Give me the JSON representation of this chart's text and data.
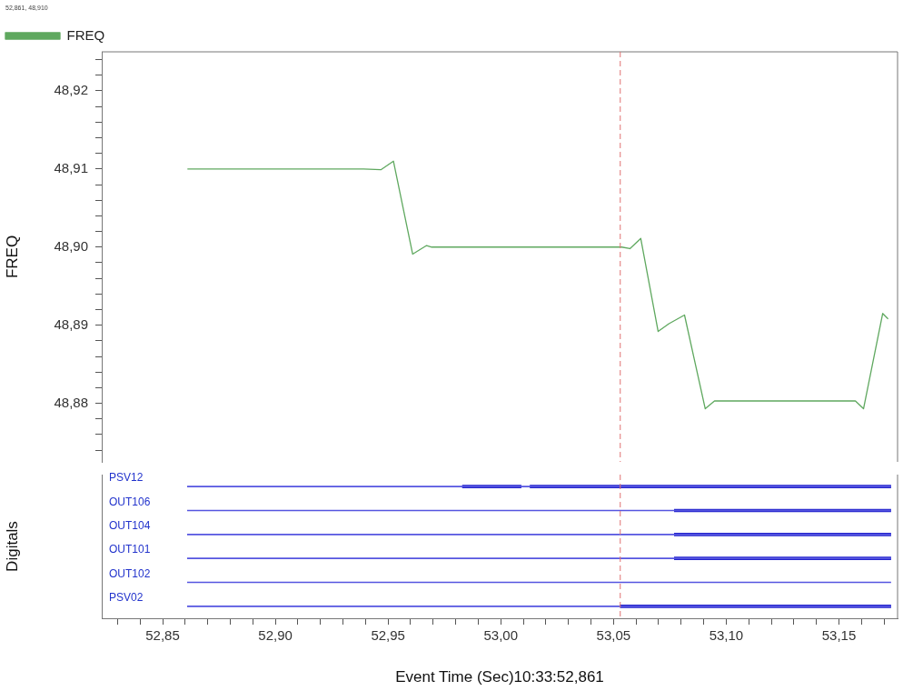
{
  "chart_data": [
    {
      "type": "line",
      "ylabel": "FREQ",
      "legend": "top",
      "tick_labels": "y",
      "annotations": [
        "52,861, 48,910"
      ],
      "xlim": [
        52.823,
        53.176
      ],
      "ylim": [
        48.8725,
        48.925
      ],
      "yticks": [
        {
          "value": 48.874,
          "label": null
        },
        {
          "value": 48.876,
          "label": null
        },
        {
          "value": 48.878,
          "label": null
        },
        {
          "value": 48.88,
          "label": "48,88"
        },
        {
          "value": 48.882,
          "label": null
        },
        {
          "value": 48.884,
          "label": null
        },
        {
          "value": 48.886,
          "label": null
        },
        {
          "value": 48.888,
          "label": null
        },
        {
          "value": 48.89,
          "label": "48,89"
        },
        {
          "value": 48.892,
          "label": null
        },
        {
          "value": 48.894,
          "label": null
        },
        {
          "value": 48.896,
          "label": null
        },
        {
          "value": 48.898,
          "label": null
        },
        {
          "value": 48.9,
          "label": "48,90"
        },
        {
          "value": 48.902,
          "label": null
        },
        {
          "value": 48.904,
          "label": null
        },
        {
          "value": 48.906,
          "label": null
        },
        {
          "value": 48.908,
          "label": null
        },
        {
          "value": 48.91,
          "label": "48,91"
        },
        {
          "value": 48.912,
          "label": null
        },
        {
          "value": 48.914,
          "label": null
        },
        {
          "value": 48.916,
          "label": null
        },
        {
          "value": 48.918,
          "label": null
        },
        {
          "value": 48.92,
          "label": "48,92"
        },
        {
          "value": 48.922,
          "label": null
        },
        {
          "value": 48.924,
          "label": null
        }
      ],
      "ref_lines": [
        {
          "axis": "x",
          "value": 53.053,
          "color": "#e07070",
          "line_style": "dashed"
        }
      ],
      "series": [
        {
          "name": "FREQ",
          "color": "#5fa85f",
          "x": [
            52.861,
            52.9391,
            52.9468,
            52.9524,
            52.9609,
            52.9671,
            52.9694,
            53.0536,
            53.0573,
            53.0621,
            53.0698,
            53.0746,
            53.0815,
            53.0907,
            53.0948,
            53.1573,
            53.1609,
            53.1694,
            53.1718
          ],
          "values": [
            48.91,
            48.91,
            48.9099,
            48.911,
            48.8991,
            48.9002,
            48.9,
            48.9,
            48.8998,
            48.9011,
            48.8892,
            48.8902,
            48.8913,
            48.8793,
            48.8803,
            48.8803,
            48.8793,
            48.8915,
            48.8908
          ]
        }
      ]
    },
    {
      "type": "bar",
      "orientation": "horizontal",
      "ylabel": "Digitals",
      "xlabel": "Event Time (Sec)10:33:52,861",
      "categories": [
        "PSV12",
        "OUT106",
        "OUT104",
        "OUT101",
        "OUT102",
        "PSV02"
      ],
      "xlim": [
        52.823,
        53.176
      ],
      "xticks": [
        {
          "value": 52.83,
          "label": null
        },
        {
          "value": 52.84,
          "label": null
        },
        {
          "value": 52.85,
          "label": "52,85"
        },
        {
          "value": 52.86,
          "label": null
        },
        {
          "value": 52.87,
          "label": null
        },
        {
          "value": 52.88,
          "label": null
        },
        {
          "value": 52.89,
          "label": null
        },
        {
          "value": 52.9,
          "label": "52,90"
        },
        {
          "value": 52.91,
          "label": null
        },
        {
          "value": 52.92,
          "label": null
        },
        {
          "value": 52.93,
          "label": null
        },
        {
          "value": 52.94,
          "label": null
        },
        {
          "value": 52.95,
          "label": "52,95"
        },
        {
          "value": 52.96,
          "label": null
        },
        {
          "value": 52.97,
          "label": null
        },
        {
          "value": 52.98,
          "label": null
        },
        {
          "value": 52.99,
          "label": null
        },
        {
          "value": 53.0,
          "label": "53,00"
        },
        {
          "value": 53.01,
          "label": null
        },
        {
          "value": 53.02,
          "label": null
        },
        {
          "value": 53.03,
          "label": null
        },
        {
          "value": 53.04,
          "label": null
        },
        {
          "value": 53.05,
          "label": "53,05"
        },
        {
          "value": 53.06,
          "label": null
        },
        {
          "value": 53.07,
          "label": null
        },
        {
          "value": 53.08,
          "label": null
        },
        {
          "value": 53.09,
          "label": null
        },
        {
          "value": 53.1,
          "label": "53,10"
        },
        {
          "value": 53.11,
          "label": null
        },
        {
          "value": 53.12,
          "label": null
        },
        {
          "value": 53.13,
          "label": null
        },
        {
          "value": 53.14,
          "label": null
        },
        {
          "value": 53.15,
          "label": "53,15"
        },
        {
          "value": 53.16,
          "label": null
        },
        {
          "value": 53.17,
          "label": null
        }
      ],
      "ref_lines": [
        {
          "axis": "x",
          "value": 53.053,
          "color": "#e07070",
          "line_style": "dashed"
        }
      ],
      "series": [
        {
          "color": "#5555e0",
          "base": [
            52.861,
            52.861,
            52.861,
            52.861,
            52.861,
            52.861
          ],
          "values": [
            0.312,
            0.312,
            0.312,
            0.312,
            0.312,
            0.312
          ]
        },
        {
          "color": "#2222cc",
          "base": [
            52.983,
            53.077,
            53.077,
            53.077,
            null,
            53.053
          ],
          "values": [
            0.026,
            0.096,
            0.096,
            0.096,
            null,
            0.12
          ]
        },
        {
          "color": "#2222cc",
          "base": [
            53.013,
            null,
            null,
            null,
            null,
            null
          ],
          "values": [
            0.16,
            null,
            null,
            null,
            null,
            null
          ]
        }
      ]
    }
  ]
}
